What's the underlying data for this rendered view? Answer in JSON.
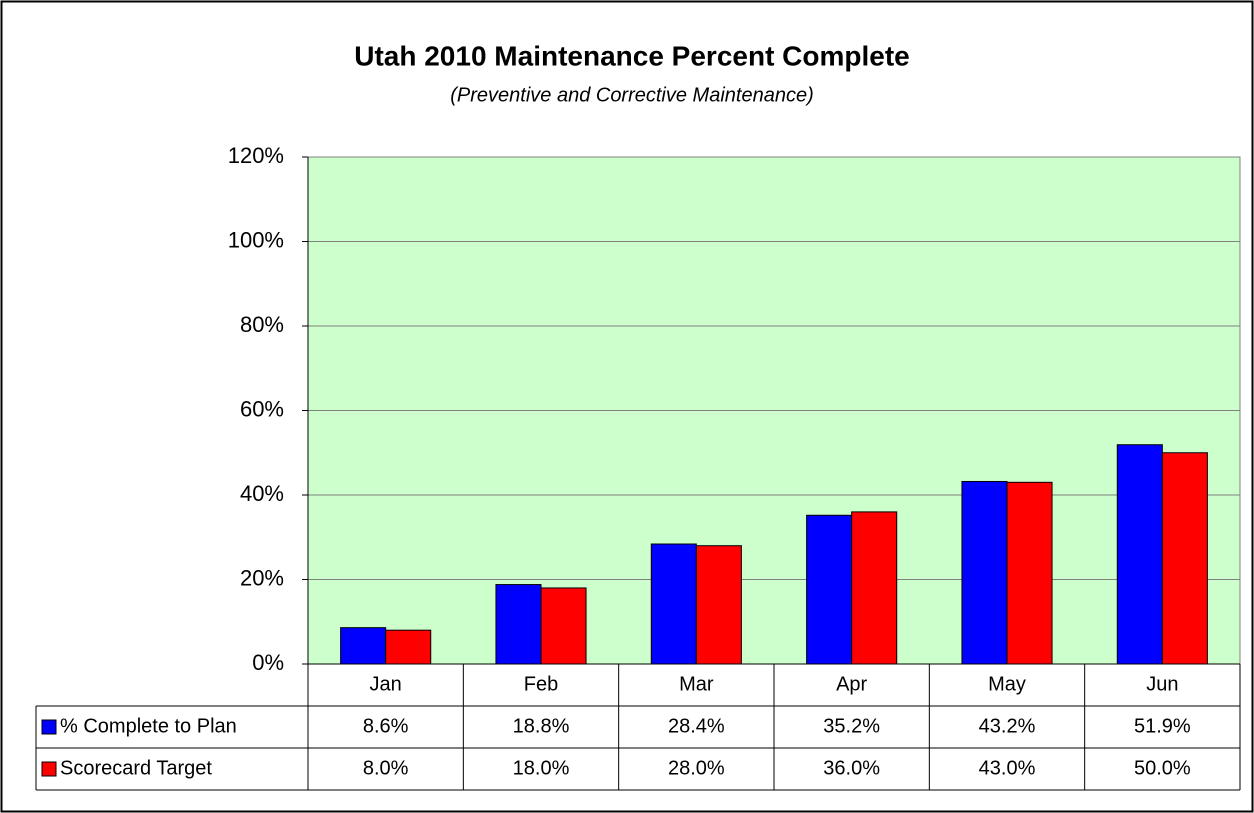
{
  "chart_data": {
    "type": "bar",
    "title": "Utah 2010 Maintenance Percent Complete",
    "subtitle": "(Preventive and Corrective Maintenance)",
    "categories": [
      "Jan",
      "Feb",
      "Mar",
      "Apr",
      "May",
      "Jun"
    ],
    "series": [
      {
        "name": "% Complete to Plan",
        "color": "#0000ff",
        "values": [
          8.6,
          18.8,
          28.4,
          35.2,
          43.2,
          51.9
        ],
        "value_labels": [
          "8.6%",
          "18.8%",
          "28.4%",
          "35.2%",
          "43.2%",
          "51.9%"
        ]
      },
      {
        "name": "Scorecard Target",
        "color": "#ff0000",
        "values": [
          8.0,
          18.0,
          28.0,
          36.0,
          43.0,
          50.0
        ],
        "value_labels": [
          "8.0%",
          "18.0%",
          "28.0%",
          "36.0%",
          "43.0%",
          "50.0%"
        ]
      }
    ],
    "ylim": [
      0,
      120
    ],
    "yticks": [
      {
        "value": 0,
        "label": "0%"
      },
      {
        "value": 20,
        "label": "20%"
      },
      {
        "value": 40,
        "label": "40%"
      },
      {
        "value": 60,
        "label": "60%"
      },
      {
        "value": 80,
        "label": "80%"
      },
      {
        "value": 100,
        "label": "100%"
      },
      {
        "value": 120,
        "label": "120%"
      }
    ],
    "grid": true,
    "plot_background": "#ccffcc"
  }
}
